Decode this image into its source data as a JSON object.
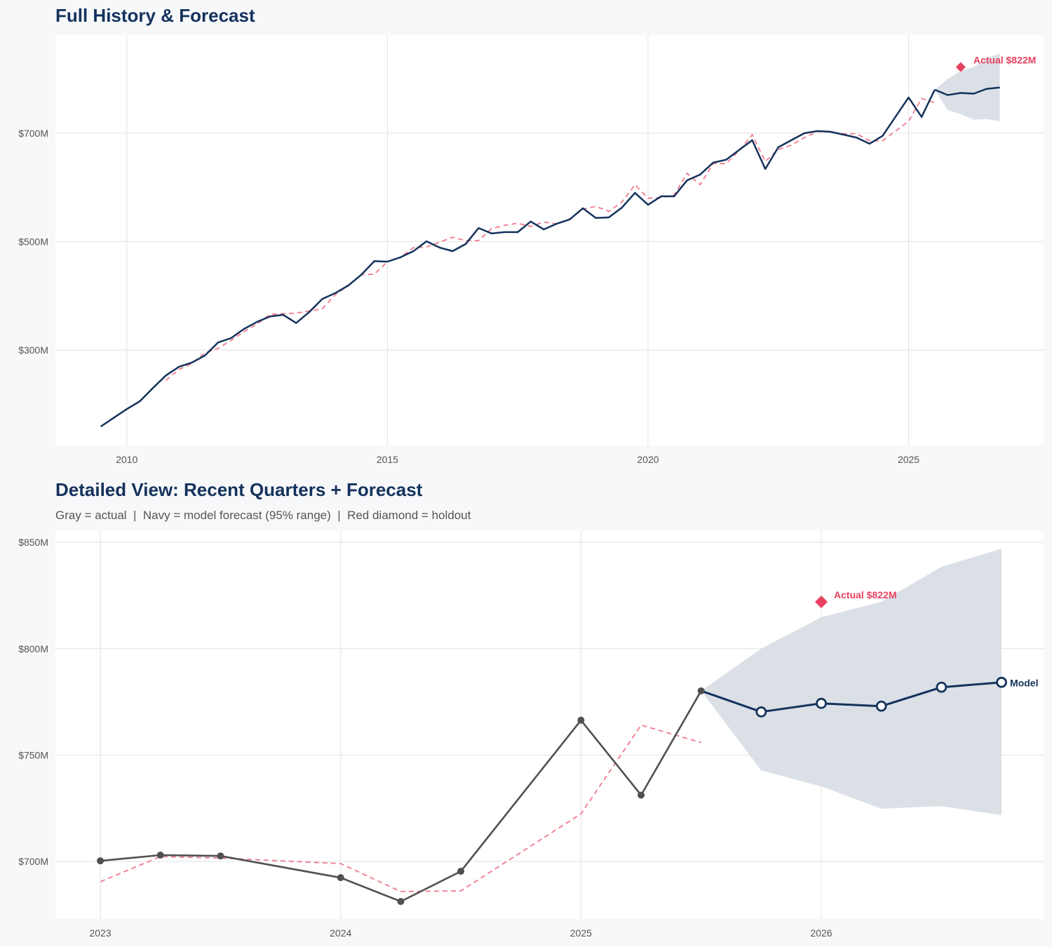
{
  "colors": {
    "background": "#f7f8fa",
    "navy": "#14325c",
    "actual_gray": "#505050",
    "fitted_red_dashed": "#ee7b8c",
    "holdout_red": "#e8415f",
    "band": "#dbe0e7",
    "grid": "#e2e2e2"
  },
  "chart_data": [
    {
      "type": "line",
      "title": "Full History & Forecast",
      "xlim": [
        2008.63,
        2027.59
      ],
      "ylim": [
        124,
        881
      ],
      "grid": true,
      "x_ticks": [
        2010,
        2015,
        2020,
        2025
      ],
      "x_tick_labels": [
        "2010",
        "2015",
        "2020",
        "2025"
      ],
      "y_ticks": [
        300,
        500,
        700
      ],
      "y_tick_labels": [
        "$300M",
        "$500M",
        "$700M"
      ],
      "series": [
        {
          "role": "actual",
          "style": "solid navy line",
          "points": [
            [
              2009.5,
              159
            ],
            [
              2009.75,
              175
            ],
            [
              2010,
              191
            ],
            [
              2010.25,
              205.5
            ],
            [
              2010.5,
              230
            ],
            [
              2010.75,
              253
            ],
            [
              2011,
              269
            ],
            [
              2011.25,
              277
            ],
            [
              2011.5,
              290
            ],
            [
              2011.75,
              314
            ],
            [
              2012,
              322
            ],
            [
              2012.25,
              339
            ],
            [
              2012.5,
              352
            ],
            [
              2012.75,
              362
            ],
            [
              2013,
              365
            ],
            [
              2013.25,
              350
            ],
            [
              2013.5,
              370
            ],
            [
              2013.75,
              394
            ],
            [
              2014,
              405
            ],
            [
              2014.25,
              419
            ],
            [
              2014.5,
              439
            ],
            [
              2014.75,
              464
            ],
            [
              2015,
              463
            ],
            [
              2015.25,
              471
            ],
            [
              2015.5,
              482.5
            ],
            [
              2015.75,
              500.6
            ],
            [
              2016,
              489
            ],
            [
              2016.25,
              482.5
            ],
            [
              2016.5,
              495.5
            ],
            [
              2016.75,
              525
            ],
            [
              2017,
              515
            ],
            [
              2017.25,
              517.5
            ],
            [
              2017.5,
              517.5
            ],
            [
              2017.75,
              537
            ],
            [
              2018,
              522.5
            ],
            [
              2018.25,
              533
            ],
            [
              2018.5,
              541
            ],
            [
              2018.75,
              561.5
            ],
            [
              2019,
              543.5
            ],
            [
              2019.25,
              544.7
            ],
            [
              2019.5,
              562.8
            ],
            [
              2019.75,
              590
            ],
            [
              2020,
              568
            ],
            [
              2020.25,
              583.5
            ],
            [
              2020.5,
              583.5
            ],
            [
              2020.75,
              613
            ],
            [
              2021,
              623.6
            ],
            [
              2021.25,
              645.6
            ],
            [
              2021.5,
              651
            ],
            [
              2021.75,
              669
            ],
            [
              2022,
              687
            ],
            [
              2022.25,
              634
            ],
            [
              2022.5,
              674
            ],
            [
              2022.75,
              687
            ],
            [
              2023,
              700
            ],
            [
              2023.25,
              704
            ],
            [
              2023.5,
              702.6
            ],
            [
              2023.75,
              697.4
            ],
            [
              2024,
              692
            ],
            [
              2024.25,
              680.6
            ],
            [
              2024.5,
              695
            ],
            [
              2025,
              766
            ],
            [
              2025.25,
              730
            ],
            [
              2025.5,
              780
            ]
          ]
        },
        {
          "role": "fitted",
          "style": "dashed red line",
          "points": [
            [
              2010.75,
              244
            ],
            [
              2011,
              264
            ],
            [
              2011.25,
              275
            ],
            [
              2011.5,
              295
            ],
            [
              2011.75,
              303
            ],
            [
              2012,
              318
            ],
            [
              2012.25,
              334
            ],
            [
              2012.5,
              348
            ],
            [
              2012.75,
              366
            ],
            [
              2013,
              367
            ],
            [
              2013.25,
              368
            ],
            [
              2013.5,
              372
            ],
            [
              2013.75,
              376
            ],
            [
              2014,
              402
            ],
            [
              2014.25,
              419
            ],
            [
              2014.5,
              439
            ],
            [
              2014.75,
              440
            ],
            [
              2015,
              463
            ],
            [
              2015.25,
              471
            ],
            [
              2015.5,
              489
            ],
            [
              2015.75,
              490
            ],
            [
              2016,
              499
            ],
            [
              2016.25,
              508
            ],
            [
              2016.5,
              502
            ],
            [
              2016.75,
              502
            ],
            [
              2017,
              524
            ],
            [
              2017.25,
              530
            ],
            [
              2017.5,
              534
            ],
            [
              2017.75,
              528
            ],
            [
              2018,
              536
            ],
            [
              2018.25,
              533
            ],
            [
              2018.5,
              542
            ],
            [
              2018.75,
              560
            ],
            [
              2019,
              565
            ],
            [
              2019.25,
              556
            ],
            [
              2019.5,
              573
            ],
            [
              2019.75,
              605
            ],
            [
              2020,
              580
            ],
            [
              2020.25,
              581
            ],
            [
              2020.5,
              586
            ],
            [
              2020.75,
              626
            ],
            [
              2021,
              605
            ],
            [
              2021.25,
              644
            ],
            [
              2021.5,
              644
            ],
            [
              2021.75,
              668
            ],
            [
              2022,
              697
            ],
            [
              2022.25,
              648
            ],
            [
              2022.5,
              670
            ],
            [
              2022.75,
              678
            ],
            [
              2023,
              692
            ],
            [
              2023.25,
              703
            ],
            [
              2023.5,
              702
            ],
            [
              2023.75,
              699
            ],
            [
              2024,
              699
            ],
            [
              2024.25,
              686
            ],
            [
              2024.5,
              686
            ],
            [
              2025,
              722
            ],
            [
              2025.25,
              764
            ],
            [
              2025.5,
              756
            ]
          ]
        },
        {
          "role": "forecast",
          "style": "solid navy line",
          "points": [
            [
              2025.5,
              780.2
            ],
            [
              2025.75,
              770.3
            ],
            [
              2026,
              774.3
            ],
            [
              2026.25,
              773
            ],
            [
              2026.5,
              781.9
            ],
            [
              2026.75,
              784.2
            ]
          ]
        }
      ],
      "band_95": {
        "upper": [
          [
            2025.5,
            780.2
          ],
          [
            2025.75,
            800
          ],
          [
            2026,
            814.8
          ],
          [
            2026.25,
            822
          ],
          [
            2026.5,
            838.5
          ],
          [
            2026.75,
            847
          ]
        ],
        "lower": [
          [
            2025.5,
            780.2
          ],
          [
            2025.75,
            742.8
          ],
          [
            2026,
            735.3
          ],
          [
            2026.25,
            724.8
          ],
          [
            2026.5,
            726
          ],
          [
            2026.75,
            721.8
          ]
        ]
      },
      "holdout": {
        "x": 2026,
        "y": 822,
        "label": "Actual $822M"
      }
    },
    {
      "type": "line",
      "title": "Detailed View: Recent Quarters + Forecast",
      "subtitle": "Gray = actual  |  Navy = model forecast (95% range)  |  Red diamond = holdout",
      "xlim": [
        2022.813,
        2026.925
      ],
      "ylim": [
        673,
        855.3
      ],
      "grid": true,
      "x_ticks": [
        2023,
        2024,
        2025,
        2026
      ],
      "x_tick_labels": [
        "2023",
        "2024",
        "2025",
        "2026"
      ],
      "y_ticks": [
        700,
        750,
        800,
        850
      ],
      "y_tick_labels": [
        "$700M",
        "$750M",
        "$800M",
        "$850M"
      ],
      "series": [
        {
          "role": "actual",
          "style": "gray line with dot markers",
          "points": [
            [
              2023,
              700.3
            ],
            [
              2023.25,
              703
            ],
            [
              2023.5,
              702.6
            ],
            [
              2024,
              692.4
            ],
            [
              2024.25,
              681.2
            ],
            [
              2024.5,
              695.4
            ],
            [
              2025,
              766.4
            ],
            [
              2025.25,
              731.2
            ],
            [
              2025.5,
              780.2
            ]
          ]
        },
        {
          "role": "fitted",
          "style": "dashed red line",
          "points": [
            [
              2023,
              690.5
            ],
            [
              2023.25,
              702.3
            ],
            [
              2023.5,
              701.6
            ],
            [
              2024,
              699
            ],
            [
              2024.25,
              685.9
            ],
            [
              2024.5,
              686.2
            ],
            [
              2025,
              722.4
            ],
            [
              2025.25,
              764.1
            ],
            [
              2025.5,
              755.9
            ]
          ]
        },
        {
          "role": "forecast",
          "style": "navy line with open circle markers",
          "label": "Model",
          "points": [
            [
              2025.5,
              780.2
            ],
            [
              2025.75,
              770.3
            ],
            [
              2026,
              774.3
            ],
            [
              2026.25,
              773
            ],
            [
              2026.5,
              781.9
            ],
            [
              2026.75,
              784.2
            ]
          ]
        }
      ],
      "band_95": {
        "upper": [
          [
            2025.5,
            780.2
          ],
          [
            2025.75,
            800
          ],
          [
            2026,
            814.8
          ],
          [
            2026.25,
            822
          ],
          [
            2026.5,
            838.5
          ],
          [
            2026.75,
            847
          ]
        ],
        "lower": [
          [
            2025.5,
            780.2
          ],
          [
            2025.75,
            742.8
          ],
          [
            2026,
            735.3
          ],
          [
            2026.25,
            724.8
          ],
          [
            2026.5,
            726
          ],
          [
            2026.75,
            721.8
          ]
        ]
      },
      "holdout": {
        "x": 2026,
        "y": 822,
        "label": "Actual $822M"
      }
    }
  ]
}
